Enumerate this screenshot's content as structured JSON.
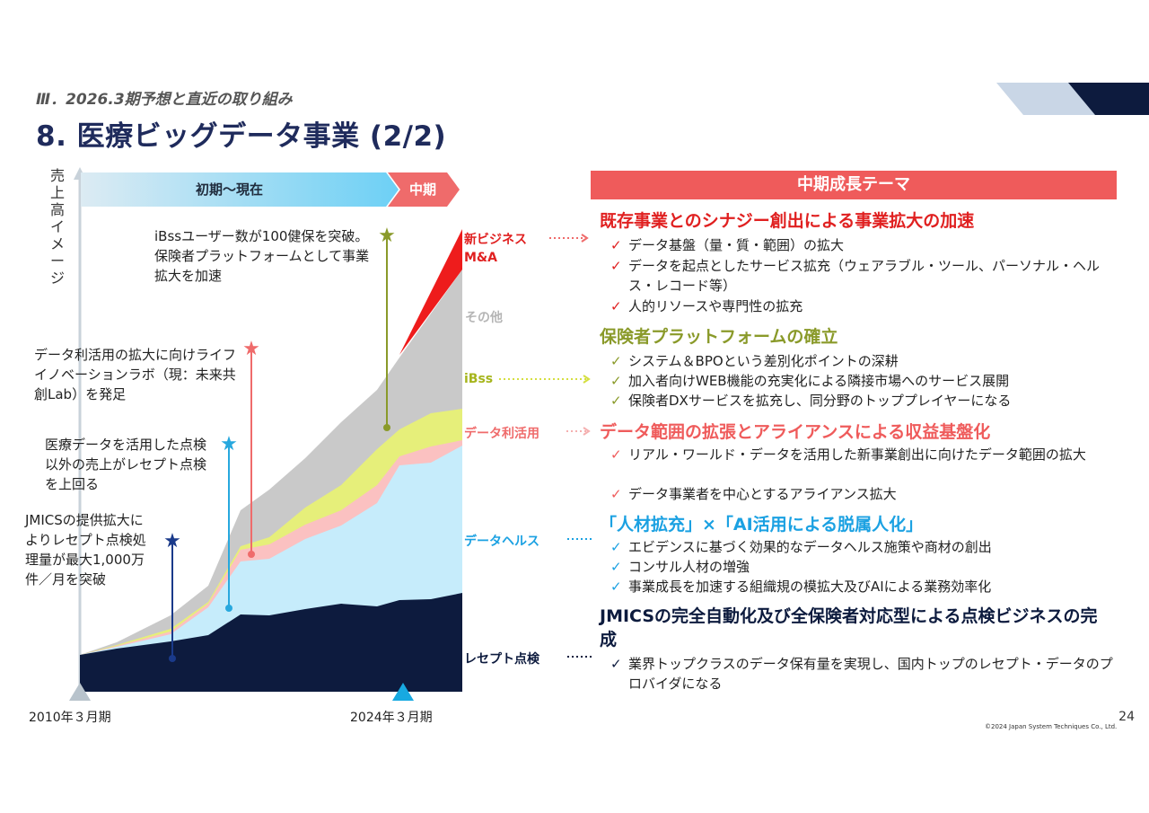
{
  "header": {
    "section": "Ⅲ．2026.3期予想と直近の取り組み",
    "title": "8. 医療ビッグデータ事業 (2/2)"
  },
  "colors": {
    "navy": "#0d1b3e",
    "light_blue": "#c6ecfb",
    "pink": "#fbc1c1",
    "yellow_green": "#e6ef7a",
    "gray": "#c9c9c9",
    "red": "#ee1c1c",
    "accent_red": "#ef5b5b",
    "olive": "#8a9a2a",
    "blue_text": "#1ba1e2"
  },
  "chart": {
    "y_label": "売上高イメージ",
    "phase_current": "初期～現在",
    "phase_mid": "中期",
    "x_start": "2010年３月期",
    "x_end": "2024年３月期",
    "segments": {
      "new_business": "新ビジネス\nM&A",
      "other": "その他",
      "ibss": "iBss",
      "data_use": "データ利活用",
      "data_health": "データヘルス",
      "receipt": "レセプト点検"
    },
    "annotations": {
      "ibss_users": "iBssユーザー数が100健保を突破。保険者プラットフォームとして事業拡大を加速",
      "lab": "データ利活用の拡大に向けライフイノベーションラボ（現：未来共創Lab）を発足",
      "medical_data": "医療データを活用した点検以外の売上がレセプト点検を上回る",
      "jmics": "JMICSの提供拡大によりレセプト点検処理量が最大1,000万件／月を突破"
    }
  },
  "themes": {
    "header": "中期成長テーマ",
    "t1": {
      "title": "既存事業とのシナジー創出による事業拡大の加速",
      "items": [
        "データ基盤（量・質・範囲）の拡大",
        "データを起点としたサービス拡充（ウェアラブル・ツール、パーソナル・ヘルス・レコード等）",
        "人的リソースや専門性の拡充"
      ]
    },
    "t2": {
      "title": "保険者プラットフォームの確立",
      "items": [
        "システム＆BPOという差別化ポイントの深耕",
        "加入者向けWEB機能の充実化による隣接市場へのサービス展開",
        "保険者DXサービスを拡充し、同分野のトッププレイヤーになる"
      ]
    },
    "t3": {
      "title": "データ範囲の拡張とアライアンスによる収益基盤化",
      "items": [
        "リアル・ワールド・データを活用した新事業創出に向けたデータ範囲の拡大",
        "データ事業者を中心とするアライアンス拡大"
      ]
    },
    "t4": {
      "title": "「人材拡充」×「AI活用による脱属人化」",
      "items": [
        "エビデンスに基づく効果的なデータヘルス施策や商材の創出",
        "コンサル人材の増強",
        "事業成長を加速する組織規の模拡大及びAIによる業務効率化"
      ]
    },
    "t5": {
      "title": "JMICSの完全自動化及び全保険者対応型による点検ビジネスの完成",
      "items": [
        "業界トップクラスのデータ保有量を実現し、国内トップのレセプト・データのプロバイダになる"
      ]
    }
  },
  "footer": {
    "copyright": "©2024 Japan System Techniques Co., Ltd.",
    "page": "24"
  }
}
